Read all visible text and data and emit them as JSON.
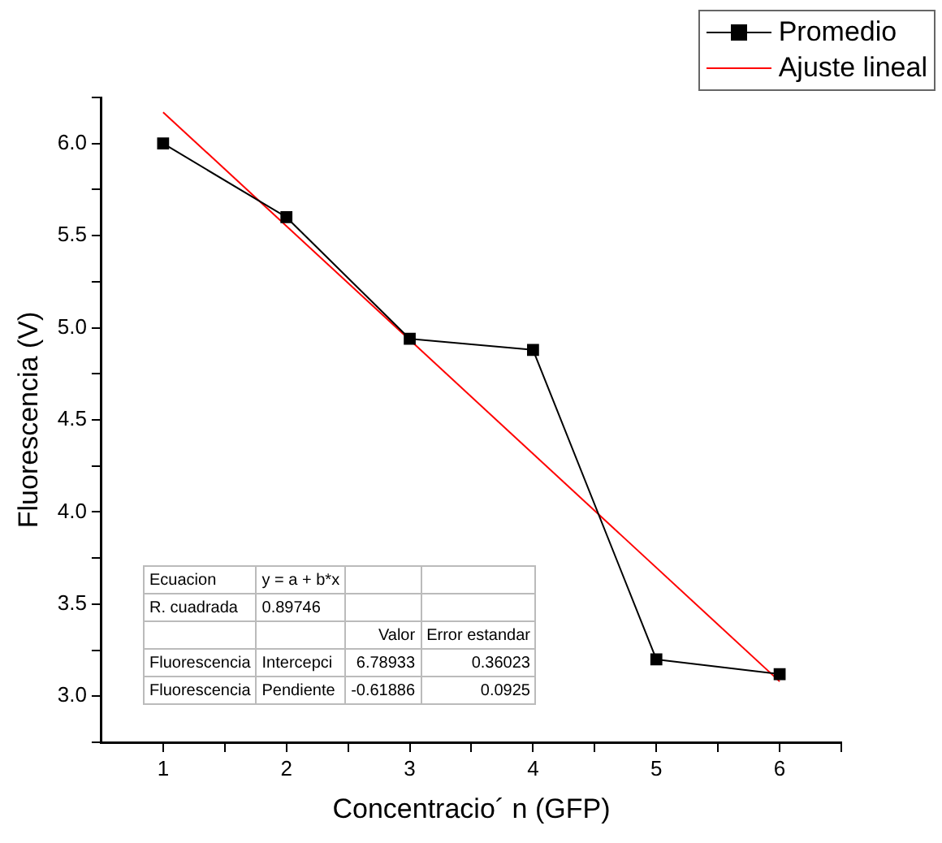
{
  "chart_data": {
    "type": "line",
    "xlabel": "Concentracio´ n (GFP)",
    "ylabel": "Fluorescencia (V)",
    "x": [
      1,
      2,
      3,
      4,
      5,
      6
    ],
    "series": [
      {
        "name": "Promedio",
        "color": "#000000",
        "values": [
          6.0,
          5.6,
          4.94,
          4.88,
          3.2,
          3.12
        ],
        "marker": "square"
      },
      {
        "name": "Ajuste lineal",
        "color": "#ff0000",
        "x": [
          1,
          6
        ],
        "values": [
          6.17,
          3.08
        ],
        "marker": "none"
      }
    ],
    "xlim": [
      0.5,
      6.5
    ],
    "xticks": [
      1,
      {
        "value": 1.5,
        "label": null
      },
      2,
      {
        "value": 2.5,
        "label": null
      },
      3,
      {
        "value": 3.5,
        "label": null
      },
      4,
      {
        "value": 4.5,
        "label": null
      },
      5,
      {
        "value": 5.5,
        "label": null
      },
      6,
      {
        "value": 6.5,
        "label": null
      }
    ],
    "ylim": [
      2.75,
      6.25
    ],
    "yticks": [
      {
        "value": 2.75,
        "label": null
      },
      {
        "value": 3.0,
        "label": "3.0"
      },
      {
        "value": 3.25,
        "label": null
      },
      {
        "value": 3.5,
        "label": "3.5"
      },
      {
        "value": 3.75,
        "label": null
      },
      {
        "value": 4.0,
        "label": "4.0"
      },
      {
        "value": 4.25,
        "label": null
      },
      {
        "value": 4.5,
        "label": "4.5"
      },
      {
        "value": 4.75,
        "label": null
      },
      {
        "value": 5.0,
        "label": "5.0"
      },
      {
        "value": 5.25,
        "label": null
      },
      {
        "value": 5.5,
        "label": "5.5"
      },
      {
        "value": 5.75,
        "label": null
      },
      {
        "value": 6.0,
        "label": "6.0"
      },
      {
        "value": 6.25,
        "label": null
      }
    ],
    "grid": false,
    "legend": "top right",
    "annotations": [
      "Ecuacion",
      "y = a + b*x",
      "R. cuadrada",
      "0.89746",
      "Valor",
      "Error estandar",
      "Fluorescencia",
      "Intercepci",
      "6.78933",
      "0.36023",
      "Fluorescencia",
      "Pendiente",
      "-0.61886",
      "0.0925"
    ]
  }
}
